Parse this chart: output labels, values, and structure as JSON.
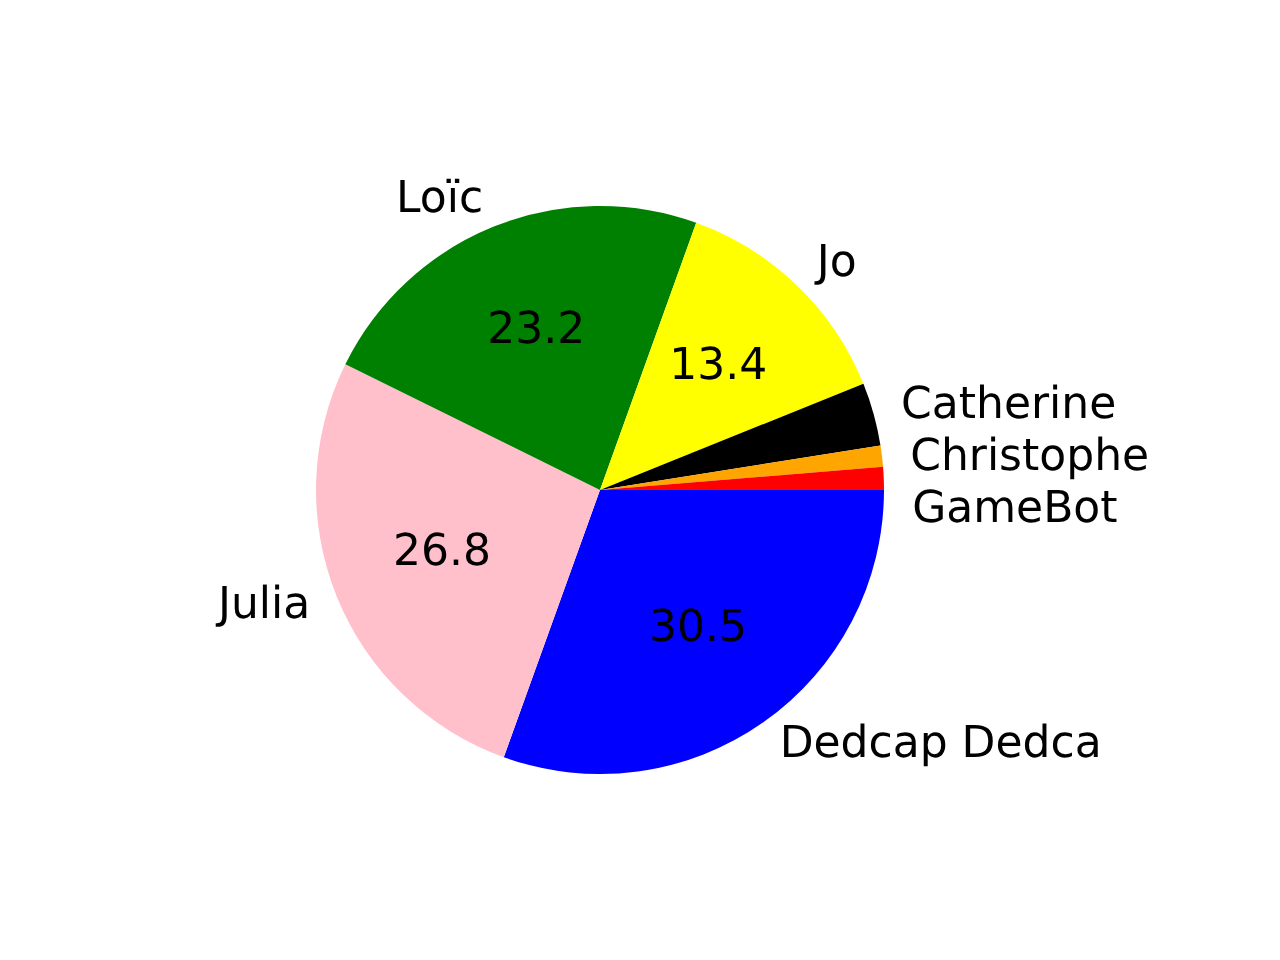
{
  "chart_data": {
    "type": "pie",
    "categories": [
      "Dedcap Dedca",
      "Julia",
      "Loïc",
      "Jo",
      "Catherine",
      "Christophe",
      "GameBot"
    ],
    "values": [
      30.5,
      26.8,
      23.2,
      13.4,
      3.6,
      1.2,
      1.3
    ],
    "colors": [
      "#0000ff",
      "#ffc0cb",
      "#008000",
      "#ffff00",
      "#000000",
      "#ffa500",
      "#ff0000"
    ],
    "value_labels": [
      "30.5",
      "26.8",
      "23.2",
      "13.4",
      null,
      null,
      null
    ],
    "legend": false
  }
}
